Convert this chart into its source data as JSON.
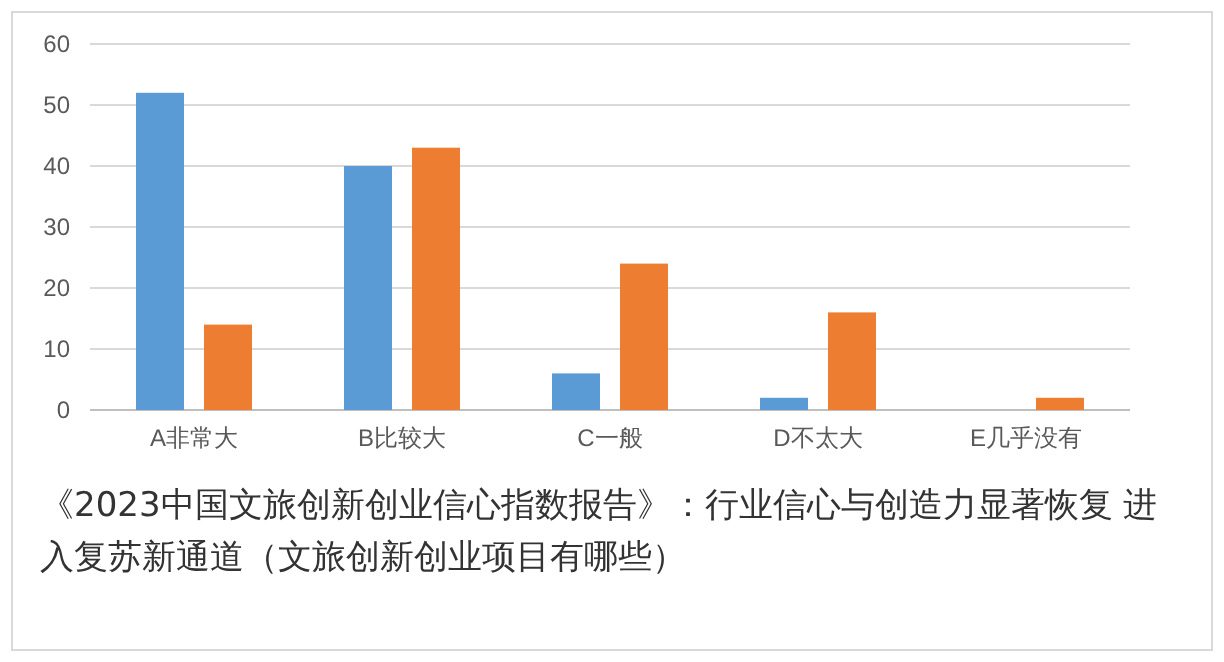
{
  "chart_data": {
    "type": "bar",
    "title": "《2023中国文旅创新创业信心指数报告》：行业信心与创造力显著恢复 进入复苏新通道（文旅创新创业项目有哪些）",
    "categories": [
      "A非常大",
      "B比较大",
      "C一般",
      "D不太大",
      "E几乎没有"
    ],
    "series": [
      {
        "color": "#5b9bd5",
        "values": [
          52,
          40,
          6,
          2,
          0
        ]
      },
      {
        "color": "#ed7d31",
        "values": [
          14,
          43,
          24,
          16,
          2
        ]
      }
    ],
    "ylim": [
      0,
      60
    ],
    "yticks": [
      0,
      10,
      20,
      30,
      40,
      50,
      60
    ],
    "grid": "y"
  }
}
